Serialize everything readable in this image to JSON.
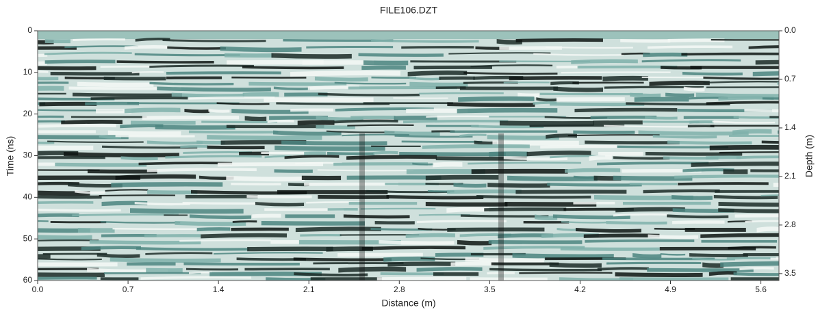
{
  "chart_data": {
    "type": "radargram",
    "title": "FILE106.DZT",
    "x_label": "Distance (m)",
    "y_label": "Time (ns)",
    "y2_label": "Depth (m)",
    "xlim": [
      0,
      5.74
    ],
    "xticks": [
      {
        "value": 0,
        "label": "0.0"
      },
      0.7,
      1.4,
      2.1,
      2.8,
      3.5,
      4.2,
      4.9,
      5.6
    ],
    "ylim": [
      0,
      60
    ],
    "yticks": [
      0,
      10,
      20,
      30,
      40,
      50,
      60
    ],
    "y2lim": [
      0,
      3.6
    ],
    "y2ticks": [
      {
        "value": 0,
        "label": "0.0"
      },
      0.7,
      1.4,
      2.1,
      2.8,
      3.5
    ]
  }
}
